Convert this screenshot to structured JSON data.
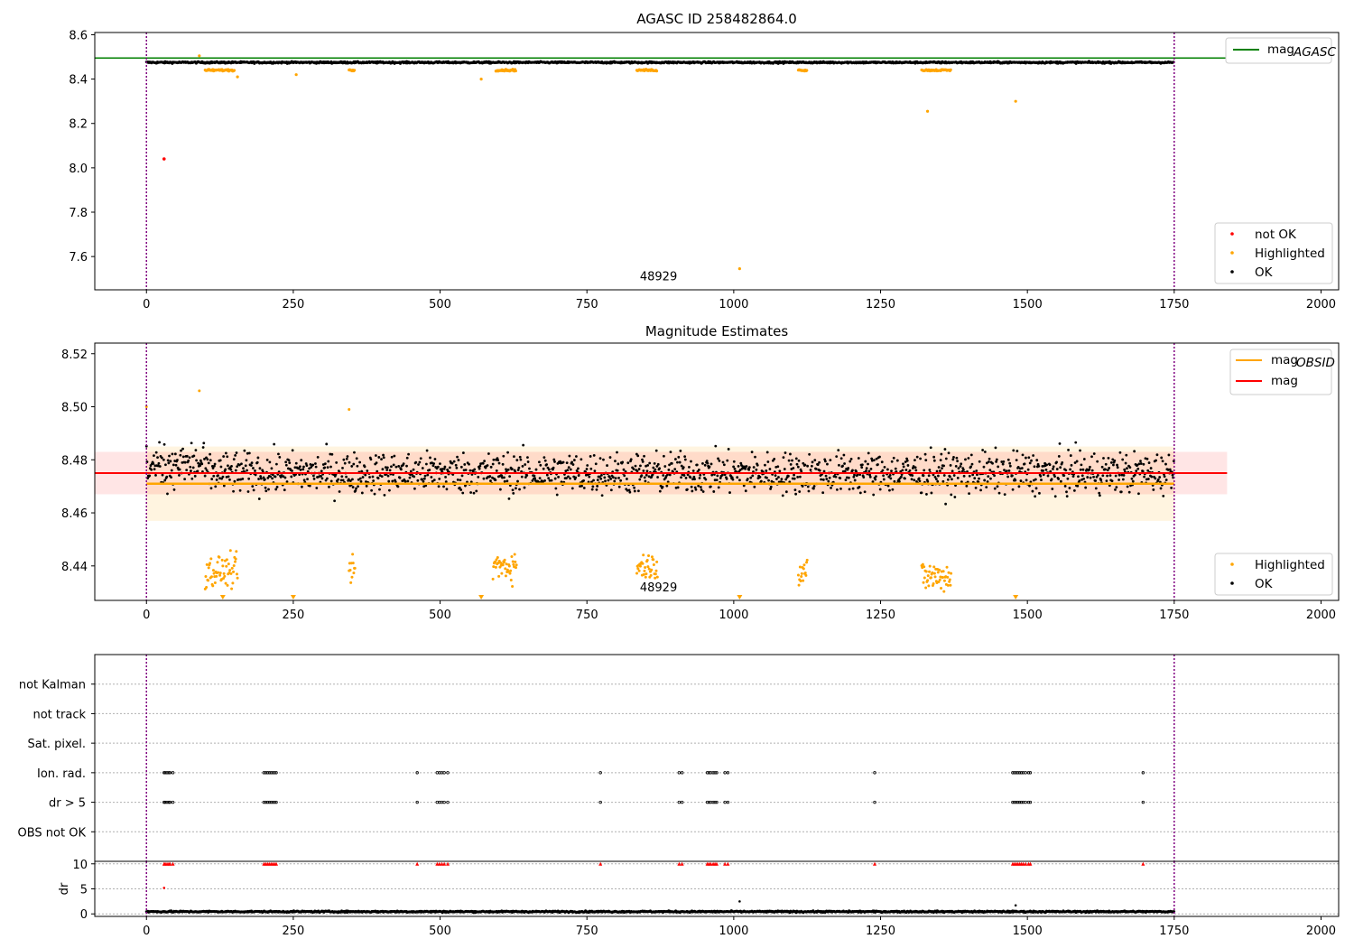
{
  "chart_data": [
    {
      "type": "scatter",
      "title": "AGASC ID 258482864.0",
      "xlim": [
        -88,
        2030
      ],
      "ylim": [
        7.45,
        8.61
      ],
      "xticks": [
        0,
        250,
        500,
        750,
        1000,
        1250,
        1500,
        1750,
        2000
      ],
      "yticks": [
        7.6,
        7.8,
        8.0,
        8.2,
        8.4,
        8.6
      ],
      "ytick_labels": [
        "7.6",
        "7.8",
        "8.0",
        "8.2",
        "8.4",
        "8.6"
      ],
      "vlines": [
        0,
        1750
      ],
      "annotation": {
        "text": "48929",
        "x": 875,
        "y": 7.5
      },
      "reference_line": {
        "name": "mag",
        "subscript": "AGASC",
        "value": 8.495,
        "x_end": 1840,
        "color": "#008000"
      },
      "series": [
        {
          "name": "not OK",
          "color": "#ff0000",
          "points": [
            [
              30,
              8.04
            ]
          ]
        },
        {
          "name": "Highlighted",
          "color": "#ffa500",
          "segments": [
            [
              100,
              150,
              8.44
            ],
            [
              345,
              355,
              8.44
            ],
            [
              595,
              630,
              8.44
            ],
            [
              835,
              870,
              8.44
            ],
            [
              1110,
              1125,
              8.44
            ],
            [
              1320,
              1370,
              8.44
            ]
          ],
          "outliers": [
            [
              90,
              8.505
            ],
            [
              155,
              8.41
            ],
            [
              255,
              8.42
            ],
            [
              570,
              8.4
            ],
            [
              1330,
              8.255
            ],
            [
              1480,
              8.3
            ],
            [
              1010,
              7.545
            ]
          ]
        },
        {
          "name": "OK",
          "color": "#000000",
          "range": [
            0,
            1750
          ],
          "center": 8.475,
          "spread": 0.01
        }
      ],
      "legend_top": [
        {
          "label": "mag",
          "subscript": "AGASC",
          "color": "#008000"
        }
      ],
      "legend_bottom": [
        "not OK",
        "Highlighted",
        "OK"
      ]
    },
    {
      "type": "scatter",
      "title": "Magnitude Estimates",
      "xlim": [
        -88,
        2030
      ],
      "ylim": [
        8.427,
        8.524
      ],
      "xticks": [
        0,
        250,
        500,
        750,
        1000,
        1250,
        1500,
        1750,
        2000
      ],
      "yticks": [
        8.44,
        8.46,
        8.48,
        8.5,
        8.52
      ],
      "ytick_labels": [
        "8.44",
        "8.46",
        "8.48",
        "8.50",
        "8.52"
      ],
      "vlines": [
        0,
        1750
      ],
      "annotation": {
        "text": "48929",
        "x": 875,
        "y": 8.431
      },
      "bands": [
        {
          "name": "mag OBSID band",
          "x": [
            0,
            1750
          ],
          "y": [
            8.457,
            8.485
          ],
          "color": "#ffa500"
        },
        {
          "name": "mag band",
          "x": [
            -88,
            1840
          ],
          "y": [
            8.467,
            8.483
          ],
          "color": "#ff0000"
        }
      ],
      "lines": [
        {
          "name": "mag",
          "subscript": "OBSID",
          "value": 8.471,
          "x": [
            0,
            1750
          ],
          "color": "#ffa500"
        },
        {
          "name": "mag",
          "value": 8.475,
          "x": [
            -88,
            1840
          ],
          "color": "#ff0000"
        }
      ],
      "series": [
        {
          "name": "Highlighted",
          "color": "#ffa500",
          "clusters": [
            [
              100,
              155,
              8.438,
              0.006
            ],
            [
              345,
              355,
              8.438,
              0.005
            ],
            [
              590,
              630,
              8.44,
              0.006
            ],
            [
              835,
              870,
              8.44,
              0.005
            ],
            [
              1110,
              1125,
              8.438,
              0.006
            ],
            [
              1320,
              1370,
              8.436,
              0.006
            ]
          ],
          "early": [
            [
              0,
              8.5
            ],
            [
              90,
              8.506
            ],
            [
              345,
              8.499
            ]
          ],
          "clipped_x": [
            130,
            250,
            570,
            1010,
            1480
          ]
        },
        {
          "name": "OK",
          "color": "#000000",
          "range": [
            0,
            1750
          ],
          "center": 8.475,
          "spread": 0.008
        }
      ],
      "legend_top": [
        {
          "label": "mag",
          "subscript": "OBSID",
          "color": "#ffa500"
        },
        {
          "label": "mag",
          "subscript": "",
          "color": "#ff0000"
        }
      ],
      "legend_bottom": [
        "Highlighted",
        "OK"
      ]
    },
    {
      "type": "scatter",
      "title": "",
      "xlim": [
        -88,
        2030
      ],
      "ylim": [
        0,
        7
      ],
      "categories": [
        "not Kalman",
        "not track",
        "Sat. pixel.",
        "Ion. rad.",
        "dr > 5",
        "OBS not OK"
      ],
      "vlines": [
        0,
        1750
      ],
      "flag_x": [
        30,
        32,
        35,
        38,
        40,
        45,
        200,
        203,
        206,
        209,
        212,
        215,
        218,
        221,
        461,
        495,
        499,
        503,
        507,
        513,
        773,
        907,
        912,
        955,
        958,
        961,
        965,
        968,
        971,
        985,
        990,
        1240,
        1475,
        1478,
        1481,
        1484,
        1487,
        1490,
        1493,
        1497,
        1502,
        1505,
        1697
      ],
      "flag_rows": [
        "Ion. rad.",
        "dr > 5"
      ]
    },
    {
      "type": "scatter",
      "title": "",
      "ylabel": "dr",
      "xlim": [
        -88,
        2030
      ],
      "ylim": [
        -0.5,
        10.5
      ],
      "xticks": [
        0,
        250,
        500,
        750,
        1000,
        1250,
        1500,
        1750,
        2000
      ],
      "yticks": [
        0,
        5,
        10
      ],
      "ytick_labels": [
        "0",
        "5",
        "10"
      ],
      "vlines": [
        0,
        1750
      ],
      "series": [
        {
          "name": "dr",
          "color": "#000000",
          "range": [
            0,
            1750
          ],
          "center": 0.45,
          "spread": 0.3,
          "outliers": [
            [
              1010,
              2.5
            ],
            [
              1480,
              1.7
            ],
            [
              30,
              5.2
            ]
          ]
        },
        {
          "name": "dr > 5 markers",
          "color": "#ff0000",
          "y": 10,
          "x_from": "flag_x"
        }
      ]
    }
  ]
}
